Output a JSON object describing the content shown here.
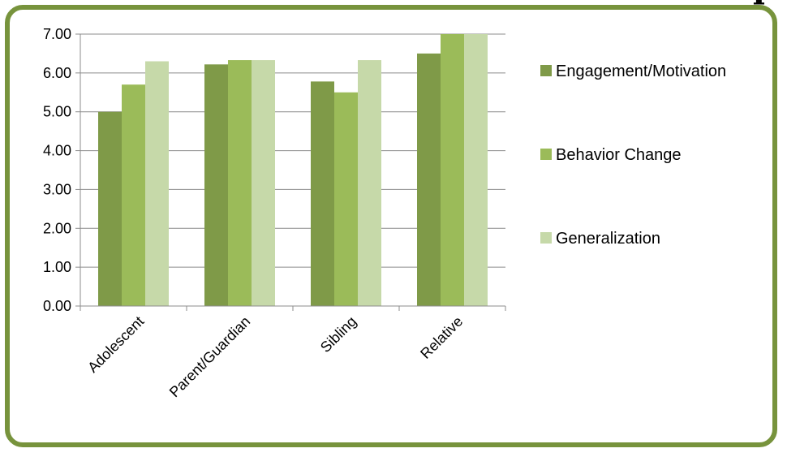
{
  "title_fragment": "p",
  "chart_data": {
    "type": "bar",
    "categories": [
      "Adolescent",
      "Parent/Guardian",
      "Sibling",
      "Relative"
    ],
    "series": [
      {
        "name": "Engagement/Motivation",
        "color": "#7f9a48",
        "values": [
          5.0,
          6.22,
          5.78,
          6.5
        ]
      },
      {
        "name": "Behavior Change",
        "color": "#9bbb59",
        "values": [
          5.7,
          6.33,
          5.5,
          7.0
        ]
      },
      {
        "name": "Generalization",
        "color": "#c6d9a9",
        "values": [
          6.3,
          6.33,
          6.33,
          7.0
        ]
      }
    ],
    "ylim": [
      0,
      7
    ],
    "y_ticks": [
      "0.00",
      "1.00",
      "2.00",
      "3.00",
      "4.00",
      "5.00",
      "6.00",
      "7.00"
    ],
    "grid": true,
    "legend_position": "right"
  }
}
